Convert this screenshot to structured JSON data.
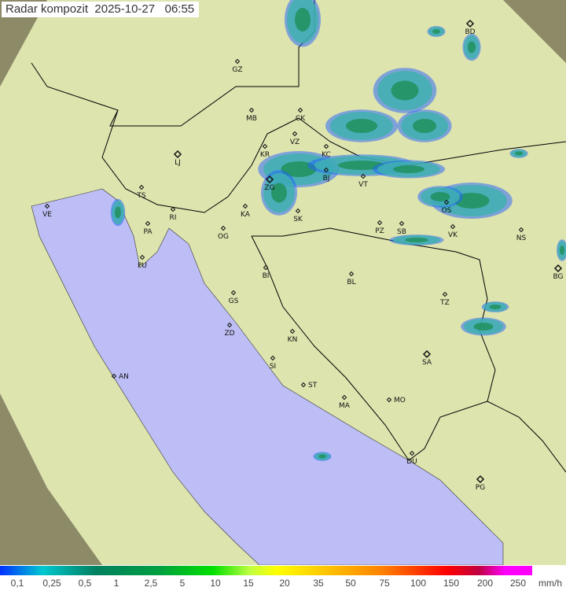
{
  "title": "Radar kompozit  2025-10-27   06:55",
  "colors": {
    "background": "#8a8a6a",
    "coverage": "#dfe6b0",
    "sea": "#bfbff8",
    "border": "#000000",
    "echo_light": "#3fb0b0",
    "echo_dark": "#1a8a4a",
    "echo_edge": "#2060ff"
  },
  "cities": [
    "GZ",
    "MB",
    "CK",
    "VZ",
    "KR",
    "KC",
    "LJ",
    "BJ",
    "ZG",
    "VT",
    "TS",
    "VE",
    "RI",
    "KA",
    "SK",
    "PA",
    "OG",
    "PZ",
    "SB",
    "OS",
    "VK",
    "NS",
    "BD",
    "BG",
    "PU",
    "BI",
    "BL",
    "GS",
    "TZ",
    "ZD",
    "KN",
    "SA",
    "SI",
    "AN",
    "ST",
    "MA",
    "MO",
    "DU",
    "PG"
  ],
  "legend": {
    "labels": [
      "0,1",
      "0,25",
      "0,5",
      "1",
      "2,5",
      "5",
      "10",
      "15",
      "20",
      "35",
      "50",
      "75",
      "100",
      "150",
      "200",
      "250"
    ],
    "unit": "mm/h"
  }
}
